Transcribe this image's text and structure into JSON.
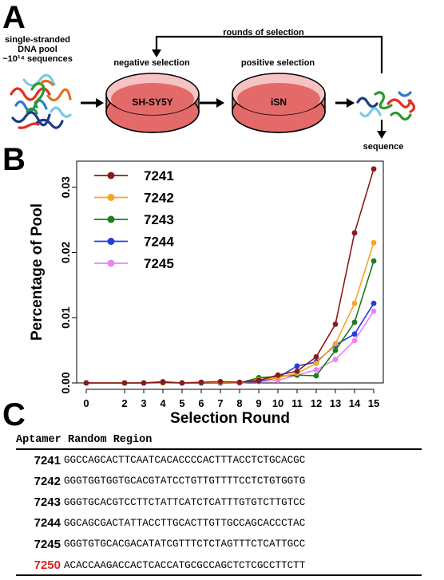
{
  "panel_a": {
    "letter": "A",
    "pool_label_1": "single-stranded",
    "pool_label_2": "DNA pool",
    "pool_label_3": "~10¹⁴ sequences",
    "loop_label": "rounds of selection",
    "neg_label": "negative selection",
    "pos_label": "positive selection",
    "dish1_label": "SH-SY5Y",
    "dish2_label": "iSN",
    "seq_label": "sequence",
    "colors": {
      "dish_fill": "#e46a6a",
      "dish_rim": "#f2b9b9"
    }
  },
  "panel_b": {
    "letter": "B"
  },
  "panel_c": {
    "letter": "C",
    "header_id": "Aptamer",
    "header_seq": "Random Region",
    "rows": [
      {
        "id": "7241",
        "seq": "GGCCAGCACTTCAATCACACCCCACTTTACCTCTGCACGC",
        "color": "#000000"
      },
      {
        "id": "7242",
        "seq": "GGGTGGTGGTGCACGTATCCTGTTGTTTTCCTCTGTGGTG",
        "color": "#000000"
      },
      {
        "id": "7243",
        "seq": "GGGTGCACGTCCTTCTATTCATCTCATTTGTGTCTTGTCC",
        "color": "#000000"
      },
      {
        "id": "7244",
        "seq": "GGCAGCGACTATTACCTTGCACTTGTTGCCAGCACCCTAC",
        "color": "#000000"
      },
      {
        "id": "7245",
        "seq": "GGGTGTGCACGACATATCGTTTCTCTAGTTTCTCATTGCC",
        "color": "#000000"
      },
      {
        "id": "7250",
        "seq": "ACACCAAGACCACTCACCATGCGCCAGCTCTCGCCTTCTT",
        "color": "#e02020"
      }
    ]
  },
  "chart_data": {
    "type": "line",
    "xlabel": "Selection Round",
    "ylabel": "Percentage of Pool",
    "x": [
      0,
      2,
      3,
      4,
      5,
      6,
      7,
      8,
      9,
      10,
      11,
      12,
      13,
      14,
      15
    ],
    "x_ticks": [
      "0",
      "2",
      "3",
      "4",
      "5",
      "6",
      "7",
      "8",
      "9",
      "10",
      "11",
      "12",
      "13",
      "14",
      "15"
    ],
    "y_ticks": [
      "0.00",
      "0.01",
      "0.02",
      "0.03"
    ],
    "ylim": [
      0,
      0.034
    ],
    "legend_position": "top-left",
    "series": [
      {
        "name": "7241",
        "color": "#8b1a1a",
        "values": [
          0,
          0,
          0,
          0.0001,
          0,
          0.0001,
          0.0002,
          0.0001,
          0.0004,
          0.0012,
          0.0018,
          0.004,
          0.009,
          0.023,
          0.0328
        ]
      },
      {
        "name": "7242",
        "color": "#f5a623",
        "values": [
          0,
          0,
          0,
          0,
          0,
          0.0001,
          0.0001,
          0,
          0.0005,
          0.0008,
          0.0015,
          0.003,
          0.006,
          0.0122,
          0.0215
        ]
      },
      {
        "name": "7243",
        "color": "#1e7b1e",
        "values": [
          0,
          0,
          0,
          0.0001,
          0,
          0,
          0.0001,
          0,
          0.0008,
          0.001,
          0.0012,
          0.0011,
          0.005,
          0.0093,
          0.0187
        ]
      },
      {
        "name": "7244",
        "color": "#1f3fe0",
        "values": [
          0,
          0,
          0,
          0.0002,
          0,
          0,
          0,
          0,
          0.0003,
          0.0008,
          0.0026,
          0.0032,
          0.0058,
          0.0075,
          0.0122
        ]
      },
      {
        "name": "7245",
        "color": "#ee82ee",
        "values": [
          0,
          0,
          0,
          0,
          0,
          0.0001,
          0,
          0,
          0.0002,
          0.0004,
          0.0012,
          0.002,
          0.0036,
          0.0065,
          0.011
        ]
      }
    ]
  }
}
